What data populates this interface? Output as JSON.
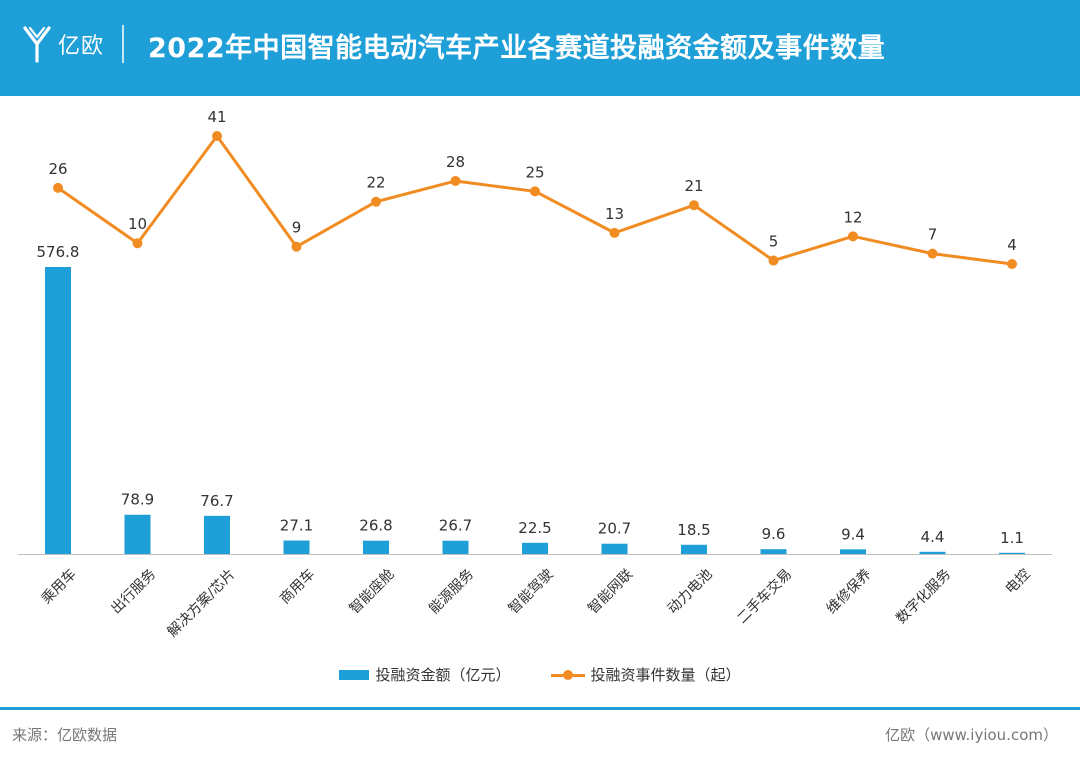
{
  "header": {
    "logo_text": "亿欧",
    "title": "2022年中国智能电动汽车产业各赛道投融资金额及事件数量"
  },
  "colors": {
    "header_bg": "#1f9fd8",
    "bar": "#1f9fd8",
    "line": "#f08c22"
  },
  "chart_data": {
    "type": "bar",
    "categories": [
      "乘用车",
      "出行服务",
      "解决方案/芯片",
      "商用车",
      "智能座舱",
      "能源服务",
      "智能驾驶",
      "智能网联",
      "动力电池",
      "二手车交易",
      "维修保养",
      "数字化服务",
      "电控"
    ],
    "series": [
      {
        "name": "投融资金额（亿元）",
        "type": "bar",
        "values": [
          576.8,
          78.9,
          76.7,
          27.1,
          26.8,
          26.7,
          22.5,
          20.7,
          18.5,
          9.6,
          9.4,
          4.4,
          1.1
        ],
        "labels": [
          "576.8",
          "78.9",
          "76.7",
          "27.1",
          "26.8",
          "26.7",
          "22.5",
          "20.7",
          "18.5",
          "9.6",
          "9.4",
          "4.4",
          "1.1"
        ]
      },
      {
        "name": "投融资事件数量（起）",
        "type": "line",
        "values": [
          26,
          10,
          41,
          9,
          22,
          28,
          25,
          13,
          21,
          5,
          12,
          7,
          4
        ],
        "labels": [
          "26",
          "10",
          "41",
          "9",
          "22",
          "28",
          "25",
          "13",
          "21",
          "5",
          "12",
          "7",
          "4"
        ]
      }
    ],
    "legend_position": "bottom",
    "grid": false
  },
  "footer": {
    "source": "来源：亿欧数据",
    "credit": "亿欧（www.iyiou.com）"
  }
}
